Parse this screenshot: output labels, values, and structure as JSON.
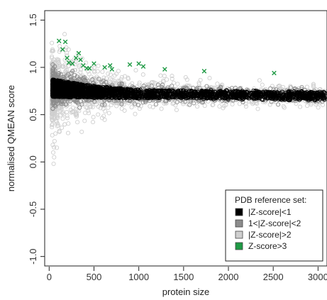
{
  "chart_data": {
    "type": "scatter",
    "title": "",
    "xlabel": "protein size",
    "ylabel": "normalised QMEAN score",
    "xlim": [
      -50,
      3100
    ],
    "ylim": [
      -1.1,
      1.6
    ],
    "x_ticks": [
      0,
      500,
      1000,
      1500,
      2000,
      2500,
      3000
    ],
    "y_ticks": [
      -1.0,
      -0.5,
      0.0,
      0.5,
      1.0,
      1.5
    ],
    "x_tick_labels": [
      "0",
      "500",
      "1000",
      "1500",
      "2000",
      "2500",
      "3000"
    ],
    "y_tick_labels": [
      "-1.0",
      "-0.5",
      "0.0",
      "0.5",
      "1.0",
      "1.5"
    ],
    "grid": false,
    "legend": {
      "title": "PDB reference set:",
      "placement": "bottom-right",
      "entries": [
        {
          "label": "|Z-score|<1",
          "color": "#000000"
        },
        {
          "label": "1<|Z-score|<2",
          "color": "#8c8c8c"
        },
        {
          "label": "|Z-score|>2",
          "color": "#cfcfcf"
        },
        {
          "label": "Z-score>3",
          "color": "#1f9a45"
        }
      ]
    },
    "series": [
      {
        "name": "|Z-score|<1",
        "color": "#000000",
        "marker": "open-circle",
        "band": {
          "x_start": 40,
          "x_end": 3080,
          "center": [
            [
              40,
              0.78
            ],
            [
              500,
              0.74
            ],
            [
              1000,
              0.72
            ],
            [
              2000,
              0.71
            ],
            [
              3000,
              0.7
            ]
          ],
          "spread": [
            [
              40,
              0.1
            ],
            [
              500,
              0.07
            ],
            [
              1000,
              0.05
            ],
            [
              2000,
              0.04
            ],
            [
              3000,
              0.04
            ]
          ]
        }
      },
      {
        "name": "1<|Z-score|<2",
        "color": "#8c8c8c",
        "marker": "open-circle",
        "band": {
          "x_start": 40,
          "x_end": 3080,
          "center": [
            [
              40,
              0.78
            ],
            [
              500,
              0.74
            ],
            [
              1000,
              0.72
            ],
            [
              2000,
              0.71
            ],
            [
              3000,
              0.7
            ]
          ],
          "spread": [
            [
              40,
              0.2
            ],
            [
              500,
              0.14
            ],
            [
              1000,
              0.1
            ],
            [
              2000,
              0.08
            ],
            [
              3000,
              0.08
            ]
          ]
        }
      },
      {
        "name": "|Z-score|>2",
        "color": "#cfcfcf",
        "marker": "open-circle",
        "band": {
          "x_start": 30,
          "x_end": 3080,
          "center": [
            [
              40,
              0.78
            ],
            [
              500,
              0.74
            ],
            [
              1000,
              0.72
            ],
            [
              2000,
              0.71
            ],
            [
              3000,
              0.7
            ]
          ],
          "spread": [
            [
              40,
              0.45
            ],
            [
              500,
              0.25
            ],
            [
              1000,
              0.18
            ],
            [
              2000,
              0.13
            ],
            [
              3000,
              0.12
            ]
          ]
        },
        "outliers": [
          {
            "x": 40,
            "y": 0.18
          },
          {
            "x": 45,
            "y": 0.1
          },
          {
            "x": 50,
            "y": -0.02
          },
          {
            "x": 55,
            "y": 0.05
          },
          {
            "x": 60,
            "y": 0.22
          },
          {
            "x": 70,
            "y": 0.3
          },
          {
            "x": 85,
            "y": 0.15
          },
          {
            "x": 90,
            "y": 0.38
          }
        ]
      },
      {
        "name": "Z-score>3",
        "color": "#1f9a45",
        "marker": "x",
        "points": [
          {
            "x": 110,
            "y": 1.28
          },
          {
            "x": 150,
            "y": 1.19
          },
          {
            "x": 180,
            "y": 1.27
          },
          {
            "x": 200,
            "y": 1.1
          },
          {
            "x": 220,
            "y": 1.05
          },
          {
            "x": 260,
            "y": 1.04
          },
          {
            "x": 300,
            "y": 1.1
          },
          {
            "x": 330,
            "y": 1.15
          },
          {
            "x": 350,
            "y": 1.08
          },
          {
            "x": 380,
            "y": 1.02
          },
          {
            "x": 420,
            "y": 0.99
          },
          {
            "x": 450,
            "y": 0.99
          },
          {
            "x": 500,
            "y": 1.04
          },
          {
            "x": 620,
            "y": 1.0
          },
          {
            "x": 680,
            "y": 1.02
          },
          {
            "x": 700,
            "y": 0.98
          },
          {
            "x": 900,
            "y": 1.03
          },
          {
            "x": 1000,
            "y": 1.04
          },
          {
            "x": 1050,
            "y": 1.01
          },
          {
            "x": 1290,
            "y": 0.98
          },
          {
            "x": 1730,
            "y": 0.96
          },
          {
            "x": 2510,
            "y": 0.94
          }
        ]
      }
    ]
  }
}
